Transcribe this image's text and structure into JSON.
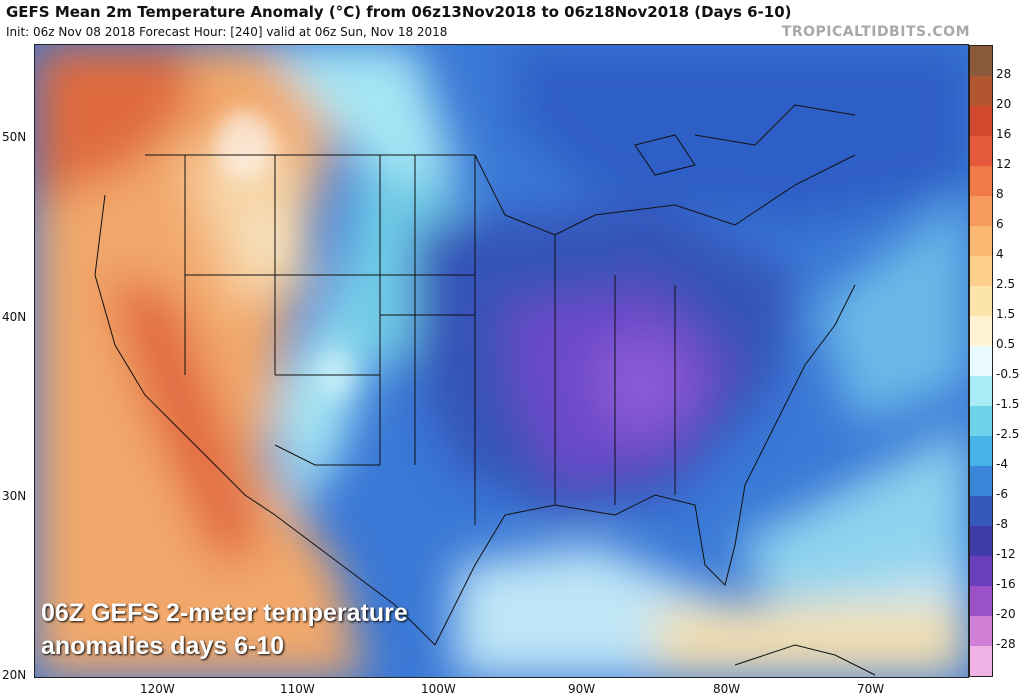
{
  "header": {
    "title": "GEFS Mean 2m Temperature Anomaly (°C) from 06z13Nov2018 to 06z18Nov2018 (Days 6-10)",
    "subtitle": "Init: 06z Nov 08 2018   Forecast Hour: [240]   valid at 06z Sun, Nov 18 2018",
    "brand": "TROPICALTIDBITS.COM"
  },
  "map": {
    "caption_line1": "06Z GEFS 2-meter temperature",
    "caption_line2": "anomalies days 6-10",
    "lat_labels": [
      "50N",
      "40N",
      "30N",
      "20N"
    ],
    "lon_labels": [
      "120W",
      "110W",
      "100W",
      "90W",
      "80W",
      "70W"
    ]
  },
  "colorbar": {
    "labels": [
      "28",
      "20",
      "16",
      "12",
      "8",
      "6",
      "4",
      "2.5",
      "1.5",
      "0.5",
      "-0.5",
      "-1.5",
      "-2.5",
      "-4",
      "-6",
      "-8",
      "-12",
      "-16",
      "-20",
      "-28"
    ],
    "colors": [
      "#8b5a3c",
      "#b2562f",
      "#d1482e",
      "#e45a3a",
      "#f07a4a",
      "#f79a5e",
      "#fbb872",
      "#fcd08c",
      "#fde4aa",
      "#fff3d4",
      "#e8faff",
      "#a9ecf5",
      "#6fd3ec",
      "#48b3e6",
      "#3b86d8",
      "#3658bd",
      "#3f3ca8",
      "#6a3fbd",
      "#9b52c9",
      "#d07fd6",
      "#f1b2e6"
    ]
  }
}
